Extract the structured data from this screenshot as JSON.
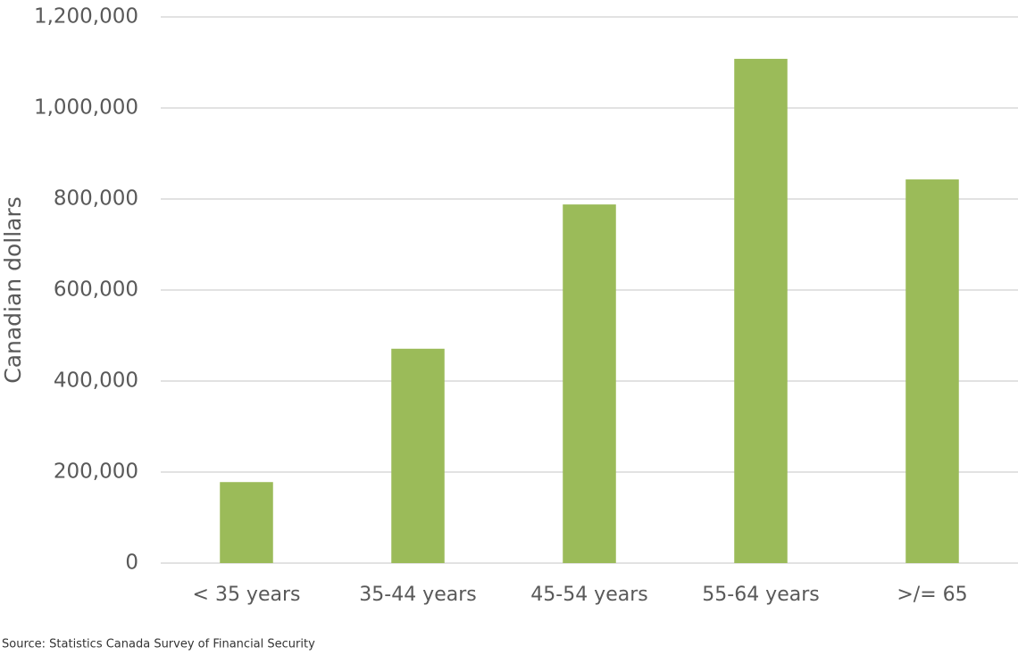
{
  "chart_data": {
    "type": "bar",
    "y_label": "Canadian dollars",
    "source": "Source: Statistics Canada Survey of Financial Security",
    "categories": [
      "< 35 years",
      "35-44 years",
      "45-54 years",
      "55-64 years",
      ">/= 65"
    ],
    "values": [
      178000,
      471000,
      788000,
      1108000,
      843000
    ],
    "color": "#9bbb59",
    "ylim": [
      0,
      1200000
    ],
    "yticks": [
      0,
      {
        "value": 200000,
        "label": "200,000"
      },
      {
        "value": 400000,
        "label": "400,000"
      },
      {
        "value": 600000,
        "label": "600,000"
      },
      {
        "value": 800000,
        "label": "800,000"
      },
      {
        "value": 1000000,
        "label": "1,000,000"
      },
      {
        "value": 1200000,
        "label": "1,200,000"
      }
    ],
    "grid": true
  }
}
